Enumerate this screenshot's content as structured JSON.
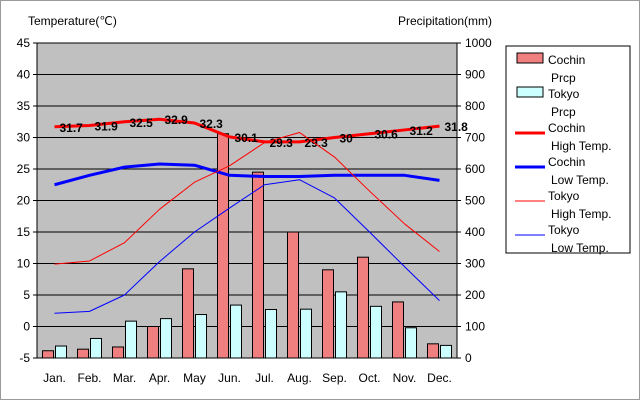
{
  "chart_data": {
    "type": "bar+line",
    "categories": [
      "Jan.",
      "Feb.",
      "Mar.",
      "Apr.",
      "May",
      "Jun.",
      "Jul.",
      "Aug.",
      "Sep.",
      "Oct.",
      "Nov.",
      "Dec."
    ],
    "left_axis": {
      "title": "Temperature(℃)",
      "min": -5,
      "max": 45,
      "step": 5
    },
    "right_axis": {
      "title": "Precipitation(mm)",
      "min": 0,
      "max": 1000,
      "step": 100
    },
    "bar_series": [
      {
        "name": "Cochin Prcp",
        "legend_lines": [
          "Cochin",
          "Prcp"
        ],
        "color": "#f08080",
        "values": [
          23,
          28,
          35,
          100,
          283,
          712,
          590,
          400,
          280,
          320,
          178,
          45
        ]
      },
      {
        "name": "Tokyo Prcp",
        "legend_lines": [
          "Tokyo",
          "Prcp"
        ],
        "color": "#ccffff",
        "values": [
          38,
          62,
          117,
          125,
          138,
          168,
          154,
          155,
          210,
          164,
          96,
          40
        ]
      }
    ],
    "line_series": [
      {
        "name": "Cochin High Temp",
        "legend_lines": [
          "Cochin",
          "High Temp."
        ],
        "color": "#ff0000",
        "width": 3,
        "values": [
          31.7,
          31.9,
          32.5,
          32.9,
          32.3,
          30.1,
          29.3,
          29.3,
          30,
          30.6,
          31.2,
          31.8
        ],
        "labels": [
          "31.7",
          "31.9",
          "32.5",
          "32.9",
          "32.3",
          "30.1",
          "29.3",
          "29.3",
          "30",
          "30.6",
          "31.2",
          "31.8"
        ]
      },
      {
        "name": "Cochin Low Temp",
        "legend_lines": [
          "Cochin",
          "Low Temp."
        ],
        "color": "#0000ff",
        "width": 3,
        "values": [
          22.5,
          24,
          25.3,
          25.8,
          25.6,
          24,
          23.8,
          23.8,
          24,
          24,
          24,
          23.2
        ]
      },
      {
        "name": "Tokyo High Temp",
        "legend_lines": [
          "Tokyo",
          "High Temp."
        ],
        "color": "#ff0000",
        "width": 1,
        "values": [
          9.9,
          10.4,
          13.3,
          18.6,
          22.9,
          25.5,
          29.2,
          30.8,
          26.9,
          21.5,
          16.3,
          11.9
        ]
      },
      {
        "name": "Tokyo Low Temp",
        "legend_lines": [
          "Tokyo",
          "Low Temp."
        ],
        "color": "#0000ff",
        "width": 1,
        "values": [
          2.1,
          2.4,
          5,
          10.3,
          15,
          18.8,
          22.5,
          23.3,
          20.4,
          15,
          9.5,
          4.1
        ]
      }
    ],
    "plot_background": "#c0c0c0",
    "gridlines": true,
    "legend_position": "right"
  }
}
